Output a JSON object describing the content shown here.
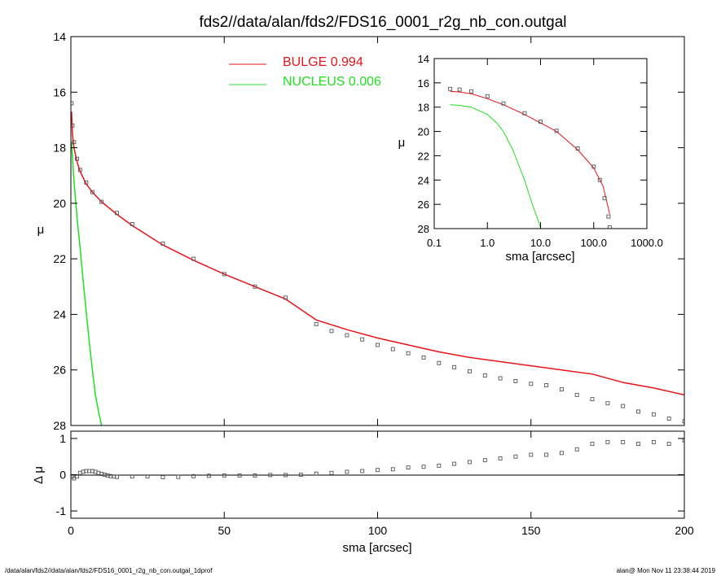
{
  "title": "fds2//data/alan/fds2/FDS16_0001_r2g_nb_con.outgal",
  "footer_left": "/data/alan/fds2//data/alan/fds2/FDS16_0001_r2g_nb_con.outgal_1dprof",
  "footer_right": "alan@  Mon Nov 11 23:38:44 2019",
  "colors": {
    "bulge": "#e8141a",
    "nucleus": "#1ee01e",
    "data": "#555555",
    "zero_line": "#000000"
  },
  "chart_data": [
    {
      "type": "line",
      "panel": "main",
      "xlabel": "sma [arcsec]",
      "ylabel": "μ",
      "xlim": [
        0,
        200
      ],
      "ylim": [
        28,
        14
      ],
      "y_inverted": true,
      "xticks": [
        "0",
        "50",
        "100",
        "150",
        "200"
      ],
      "yticks": [
        "14",
        "16",
        "18",
        "20",
        "22",
        "24",
        "26",
        "28"
      ],
      "legend": [
        {
          "label": "BULGE  0.994",
          "color": "#e8141a"
        },
        {
          "label": "NUCLEUS  0.006",
          "color": "#1ee01e"
        }
      ],
      "series": [
        {
          "name": "BULGE  0.994",
          "kind": "line",
          "color": "#e8141a",
          "x": [
            0.2,
            0.5,
            1,
            2,
            3,
            5,
            7,
            10,
            15,
            20,
            30,
            40,
            50,
            60,
            70,
            80,
            90,
            100,
            110,
            120,
            130,
            140,
            150,
            160,
            170,
            180,
            190,
            200
          ],
          "y": [
            16.7,
            17.5,
            18.0,
            18.5,
            18.85,
            19.3,
            19.6,
            19.95,
            20.4,
            20.8,
            21.5,
            22.05,
            22.55,
            23.0,
            23.45,
            24.2,
            24.55,
            24.85,
            25.1,
            25.35,
            25.55,
            25.7,
            25.85,
            26.0,
            26.15,
            26.45,
            26.65,
            26.9
          ]
        },
        {
          "name": "NUCLEUS  0.006",
          "kind": "line",
          "color": "#1ee01e",
          "x": [
            0.2,
            0.5,
            1,
            2,
            3,
            4,
            5,
            6,
            7,
            8,
            9,
            10
          ],
          "y": [
            17.8,
            18.3,
            19.2,
            20.5,
            21.6,
            22.8,
            23.9,
            25.0,
            26.0,
            26.9,
            27.5,
            28.0
          ]
        },
        {
          "name": "",
          "kind": "points",
          "color": "#555555",
          "x": [
            0.2,
            0.5,
            1,
            2,
            3,
            5,
            7,
            10,
            15,
            20,
            30,
            40,
            50,
            60,
            70,
            80,
            85,
            90,
            95,
            100,
            105,
            110,
            115,
            120,
            125,
            130,
            135,
            140,
            145,
            150,
            155,
            160,
            165,
            170,
            175,
            180,
            185,
            190,
            195,
            200
          ],
          "y": [
            16.4,
            17.2,
            17.8,
            18.4,
            18.8,
            19.25,
            19.6,
            19.95,
            20.35,
            20.75,
            21.45,
            22.0,
            22.55,
            23.0,
            23.4,
            24.35,
            24.6,
            24.75,
            24.9,
            25.1,
            25.25,
            25.4,
            25.55,
            25.75,
            25.9,
            26.05,
            26.2,
            26.3,
            26.4,
            26.5,
            26.55,
            26.7,
            26.9,
            27.05,
            27.2,
            27.3,
            27.5,
            27.6,
            27.75,
            27.85
          ]
        }
      ]
    },
    {
      "type": "scatter",
      "panel": "residual",
      "xlabel": "sma [arcsec]",
      "ylabel": "Δ μ",
      "xlim": [
        0,
        200
      ],
      "ylim": [
        -1.2,
        1.2
      ],
      "yticks": [
        "-1",
        "0",
        "1"
      ],
      "series": [
        {
          "name": "",
          "kind": "points",
          "color": "#555555",
          "x": [
            0.5,
            1,
            2,
            3,
            4,
            5,
            6,
            7,
            8,
            9,
            10,
            11,
            12,
            13,
            14,
            15,
            20,
            25,
            30,
            35,
            40,
            45,
            50,
            55,
            60,
            65,
            70,
            75,
            80,
            85,
            90,
            95,
            100,
            105,
            110,
            115,
            120,
            125,
            130,
            135,
            140,
            145,
            150,
            155,
            160,
            165,
            170,
            175,
            180,
            185,
            190,
            195,
            200
          ],
          "y": [
            -0.05,
            -0.1,
            -0.05,
            0.05,
            0.08,
            0.1,
            0.1,
            0.1,
            0.08,
            0.05,
            0.02,
            0.0,
            -0.02,
            -0.04,
            -0.05,
            -0.06,
            -0.05,
            -0.05,
            -0.07,
            -0.06,
            -0.04,
            -0.03,
            -0.02,
            -0.02,
            -0.02,
            -0.01,
            -0.01,
            0.0,
            0.03,
            0.05,
            0.08,
            0.1,
            0.13,
            0.15,
            0.2,
            0.22,
            0.25,
            0.3,
            0.35,
            0.4,
            0.45,
            0.5,
            0.55,
            0.55,
            0.6,
            0.7,
            0.85,
            0.9,
            0.9,
            0.85,
            0.9,
            0.85,
            0.95
          ]
        }
      ]
    },
    {
      "type": "line",
      "panel": "inset",
      "xlabel": "sma [arcsec]",
      "ylabel": "μ",
      "x_scale": "log",
      "xlim": [
        0.1,
        1000
      ],
      "ylim": [
        28,
        14
      ],
      "y_inverted": true,
      "xticks": [
        "0.1",
        "1.0",
        "10.0",
        "100.0",
        "1000.0"
      ],
      "yticks": [
        "14",
        "16",
        "18",
        "20",
        "22",
        "24",
        "26",
        "28"
      ],
      "series": [
        {
          "name": "BULGE  0.994",
          "kind": "line",
          "color": "#e8141a",
          "x": [
            0.2,
            0.3,
            0.5,
            1,
            2,
            5,
            10,
            20,
            50,
            100,
            150,
            200
          ],
          "y": [
            16.7,
            16.75,
            16.9,
            17.3,
            17.8,
            18.6,
            19.3,
            20.0,
            21.5,
            23.0,
            24.5,
            26.8
          ]
        },
        {
          "name": "NUCLEUS  0.006",
          "kind": "line",
          "color": "#1ee01e",
          "x": [
            0.2,
            0.3,
            0.5,
            1,
            1.5,
            2,
            3,
            5,
            7,
            10
          ],
          "y": [
            17.8,
            17.85,
            18.0,
            18.6,
            19.3,
            20.0,
            21.5,
            24.0,
            26.0,
            27.9
          ]
        },
        {
          "name": "",
          "kind": "points",
          "color": "#555555",
          "x": [
            0.2,
            0.3,
            0.5,
            1,
            2,
            5,
            10,
            20,
            50,
            100,
            130,
            160,
            190,
            200
          ],
          "y": [
            16.5,
            16.55,
            16.7,
            17.1,
            17.7,
            18.5,
            19.2,
            19.95,
            21.4,
            22.9,
            24.0,
            25.5,
            27.0,
            27.9
          ]
        }
      ]
    }
  ]
}
